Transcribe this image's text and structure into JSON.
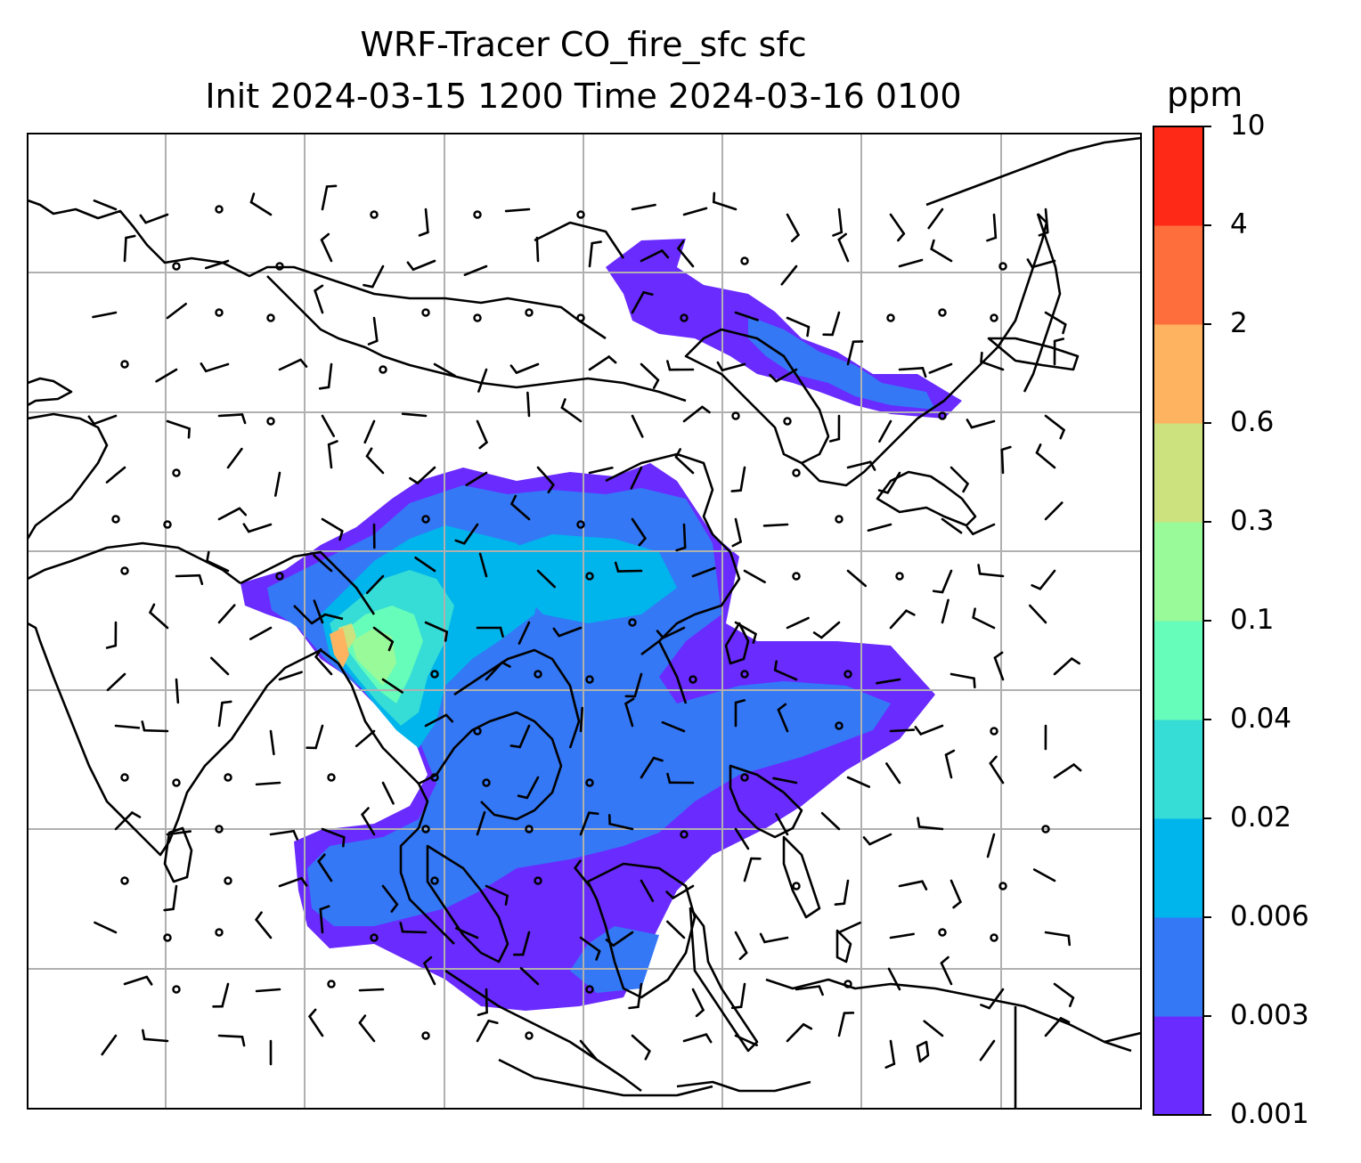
{
  "map": {
    "title_line1": "WRF-Tracer CO_fire_sfc sfc",
    "title_line2": "Init 2024-03-15 1200 Time 2024-03-16 0100",
    "gridlines": true,
    "projection": "lat-lon",
    "field": "CO_fire_sfc"
  },
  "colorbar": {
    "unit": "ppm",
    "levels": [
      "0.001",
      "0.003",
      "0.006",
      "0.02",
      "0.04",
      "0.1",
      "0.3",
      "0.6",
      "2",
      "4",
      "10"
    ],
    "colors": [
      "#6a2bff",
      "#3478f6",
      "#00b4ec",
      "#36dcd6",
      "#66fcba",
      "#99fa99",
      "#cce27f",
      "#feb360",
      "#fe6e3c",
      "#fe2a17"
    ]
  },
  "layers": [
    "coastlines",
    "country-borders",
    "co-concentration-fill",
    "wind-barbs"
  ]
}
